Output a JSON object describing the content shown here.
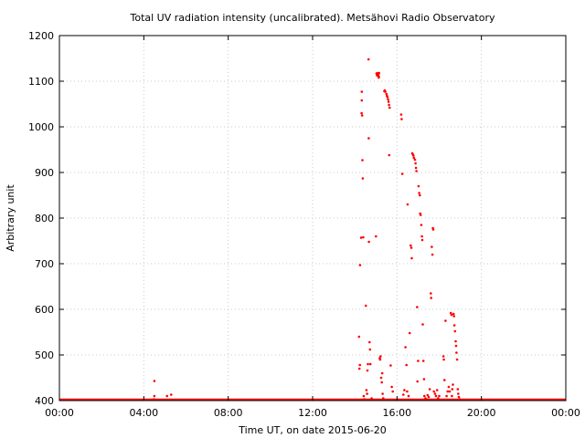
{
  "chart_data": {
    "type": "scatter",
    "title": "Total UV radiation intensity (uncalibrated). Metsähovi Radio Observatory",
    "xlabel": "Time UT, on date 2015-06-20",
    "ylabel": "Arbitrary unit",
    "x_unit": "hours UT",
    "xlim": [
      0,
      24
    ],
    "ylim": [
      400,
      1200
    ],
    "x_ticks": [
      {
        "value": 0,
        "label": "00:00"
      },
      {
        "value": 4,
        "label": "04:00"
      },
      {
        "value": 8,
        "label": "08:00"
      },
      {
        "value": 12,
        "label": "12:00"
      },
      {
        "value": 16,
        "label": "16:00"
      },
      {
        "value": 20,
        "label": "20:00"
      },
      {
        "value": 24,
        "label": "00:00"
      }
    ],
    "y_ticks": [
      {
        "value": 400,
        "label": "400"
      },
      {
        "value": 500,
        "label": "500"
      },
      {
        "value": 600,
        "label": "600"
      },
      {
        "value": 700,
        "label": "700"
      },
      {
        "value": 800,
        "label": "800"
      },
      {
        "value": 900,
        "label": "900"
      },
      {
        "value": 1000,
        "label": "1000"
      },
      {
        "value": 1100,
        "label": "1100"
      },
      {
        "value": 1200,
        "label": "1200"
      }
    ],
    "grid": true,
    "marker_color": "#ff0000",
    "baseline": {
      "value": 400,
      "x_range": [
        0,
        24
      ]
    },
    "points": [
      [
        4.5,
        443
      ],
      [
        4.5,
        410
      ],
      [
        4.48,
        403
      ],
      [
        5.1,
        410
      ],
      [
        5.3,
        413
      ],
      [
        14.2,
        540
      ],
      [
        14.22,
        470
      ],
      [
        14.24,
        478
      ],
      [
        14.25,
        697
      ],
      [
        14.3,
        757
      ],
      [
        14.32,
        1030
      ],
      [
        14.33,
        1077
      ],
      [
        14.33,
        1058
      ],
      [
        14.35,
        1025
      ],
      [
        14.36,
        927
      ],
      [
        14.38,
        887
      ],
      [
        14.4,
        758
      ],
      [
        14.42,
        410
      ],
      [
        14.45,
        403
      ],
      [
        14.52,
        608
      ],
      [
        14.55,
        423
      ],
      [
        14.58,
        415
      ],
      [
        14.6,
        466
      ],
      [
        14.62,
        480
      ],
      [
        14.65,
        1148
      ],
      [
        14.66,
        975
      ],
      [
        14.67,
        748
      ],
      [
        14.7,
        528
      ],
      [
        14.72,
        512
      ],
      [
        14.74,
        480
      ],
      [
        14.8,
        405
      ],
      [
        15.0,
        760
      ],
      [
        15.03,
        1117
      ],
      [
        15.05,
        1113
      ],
      [
        15.08,
        1118
      ],
      [
        15.1,
        1112
      ],
      [
        15.12,
        1115
      ],
      [
        15.13,
        1108
      ],
      [
        15.14,
        1110
      ],
      [
        15.15,
        1118
      ],
      [
        15.18,
        493
      ],
      [
        15.2,
        490
      ],
      [
        15.22,
        497
      ],
      [
        15.25,
        450
      ],
      [
        15.28,
        440
      ],
      [
        15.3,
        460
      ],
      [
        15.32,
        415
      ],
      [
        15.35,
        405
      ],
      [
        15.4,
        1078
      ],
      [
        15.42,
        1080
      ],
      [
        15.45,
        1077
      ],
      [
        15.5,
        1072
      ],
      [
        15.52,
        1068
      ],
      [
        15.55,
        1065
      ],
      [
        15.58,
        1060
      ],
      [
        15.6,
        1055
      ],
      [
        15.62,
        1048
      ],
      [
        15.65,
        1042
      ],
      [
        15.63,
        938
      ],
      [
        15.7,
        477
      ],
      [
        15.75,
        430
      ],
      [
        15.8,
        420
      ],
      [
        16.2,
        1027
      ],
      [
        16.22,
        1017
      ],
      [
        16.25,
        897
      ],
      [
        16.3,
        413
      ],
      [
        16.35,
        423
      ],
      [
        16.4,
        517
      ],
      [
        16.45,
        478
      ],
      [
        16.48,
        420
      ],
      [
        16.5,
        830
      ],
      [
        16.55,
        410
      ],
      [
        16.6,
        548
      ],
      [
        16.65,
        740
      ],
      [
        16.68,
        735
      ],
      [
        16.7,
        712
      ],
      [
        16.72,
        942
      ],
      [
        16.75,
        940
      ],
      [
        16.78,
        937
      ],
      [
        16.8,
        932
      ],
      [
        16.85,
        928
      ],
      [
        16.88,
        920
      ],
      [
        16.9,
        910
      ],
      [
        16.92,
        903
      ],
      [
        16.95,
        605
      ],
      [
        16.97,
        442
      ],
      [
        17.0,
        487
      ],
      [
        17.02,
        870
      ],
      [
        17.05,
        855
      ],
      [
        17.08,
        850
      ],
      [
        17.1,
        810
      ],
      [
        17.12,
        807
      ],
      [
        17.15,
        785
      ],
      [
        17.18,
        760
      ],
      [
        17.2,
        752
      ],
      [
        17.22,
        567
      ],
      [
        17.25,
        487
      ],
      [
        17.28,
        447
      ],
      [
        17.3,
        410
      ],
      [
        17.35,
        405
      ],
      [
        17.4,
        403
      ],
      [
        17.45,
        412
      ],
      [
        17.5,
        408
      ],
      [
        17.55,
        425
      ],
      [
        17.6,
        635
      ],
      [
        17.62,
        625
      ],
      [
        17.65,
        737
      ],
      [
        17.68,
        720
      ],
      [
        17.7,
        778
      ],
      [
        17.72,
        775
      ],
      [
        17.75,
        420
      ],
      [
        17.8,
        415
      ],
      [
        17.85,
        410
      ],
      [
        17.9,
        423
      ],
      [
        17.95,
        405
      ],
      [
        18.0,
        410
      ],
      [
        18.2,
        497
      ],
      [
        18.22,
        490
      ],
      [
        18.25,
        445
      ],
      [
        18.3,
        575
      ],
      [
        18.35,
        410
      ],
      [
        18.4,
        420
      ],
      [
        18.45,
        430
      ],
      [
        18.5,
        420
      ],
      [
        18.55,
        592
      ],
      [
        18.58,
        588
      ],
      [
        18.6,
        410
      ],
      [
        18.62,
        425
      ],
      [
        18.65,
        435
      ],
      [
        18.68,
        590
      ],
      [
        18.7,
        585
      ],
      [
        18.72,
        565
      ],
      [
        18.75,
        552
      ],
      [
        18.78,
        530
      ],
      [
        18.8,
        520
      ],
      [
        18.82,
        505
      ],
      [
        18.85,
        490
      ],
      [
        18.88,
        425
      ],
      [
        18.9,
        415
      ],
      [
        18.93,
        408
      ],
      [
        18.97,
        403
      ]
    ]
  }
}
